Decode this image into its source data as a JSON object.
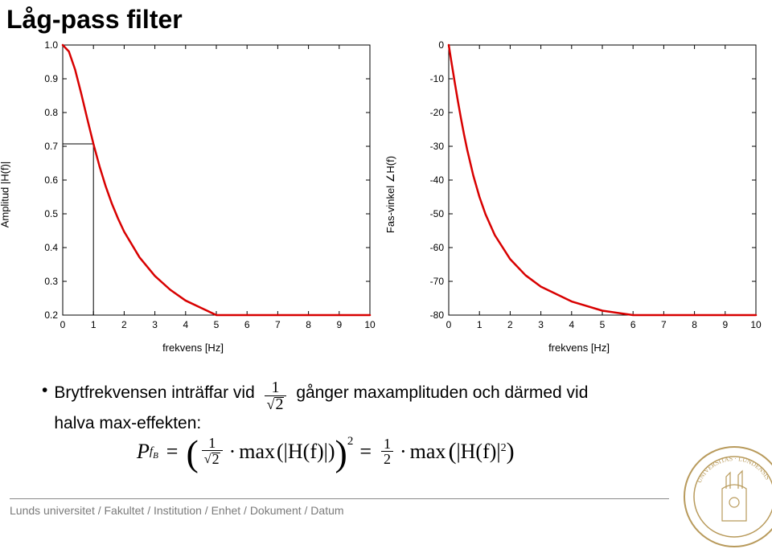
{
  "title": "Låg-pass filter",
  "chart_left": {
    "type": "line",
    "xlim": [
      0,
      10
    ],
    "ylim": [
      0.2,
      1
    ],
    "xtick_step": 1,
    "ytick_step": 0.1,
    "xlabel": "frekvens [Hz]",
    "ylabel": "Amplitud |H(f)|",
    "line_color": "#d80000",
    "line_width": 2.5,
    "box_color": "#000000",
    "background_color": "#ffffff",
    "label_fontsize": 13,
    "tick_fontsize": 12,
    "data": [
      [
        0,
        1.0
      ],
      [
        0.2,
        0.981
      ],
      [
        0.4,
        0.928
      ],
      [
        0.6,
        0.857
      ],
      [
        0.8,
        0.781
      ],
      [
        1.0,
        0.707
      ],
      [
        1.2,
        0.64
      ],
      [
        1.4,
        0.581
      ],
      [
        1.6,
        0.53
      ],
      [
        1.8,
        0.486
      ],
      [
        2.0,
        0.447
      ],
      [
        2.5,
        0.371
      ],
      [
        3.0,
        0.316
      ],
      [
        3.5,
        0.275
      ],
      [
        4.0,
        0.243
      ],
      [
        5.0,
        0.196
      ],
      [
        6.0,
        0.164
      ],
      [
        7.0,
        0.141
      ],
      [
        8.0,
        0.124
      ],
      [
        9.0,
        0.11
      ],
      [
        10.0,
        0.0995
      ]
    ],
    "marker_line": {
      "x": 1.0,
      "y": 0.707,
      "color": "#000000",
      "width": 1
    }
  },
  "chart_right": {
    "type": "line",
    "xlim": [
      0,
      10
    ],
    "ylim": [
      -80,
      0
    ],
    "xtick_step": 1,
    "ytick_step": 10,
    "xlabel": "frekvens [Hz]",
    "ylabel": "Fas-vinkel ∠H(f)",
    "line_color": "#d80000",
    "line_width": 2.5,
    "box_color": "#000000",
    "background_color": "#ffffff",
    "label_fontsize": 13,
    "tick_fontsize": 12,
    "data": [
      [
        0,
        0
      ],
      [
        0.1,
        -5.71
      ],
      [
        0.2,
        -11.31
      ],
      [
        0.3,
        -16.7
      ],
      [
        0.4,
        -21.8
      ],
      [
        0.5,
        -26.57
      ],
      [
        0.6,
        -30.96
      ],
      [
        0.8,
        -38.66
      ],
      [
        1.0,
        -45.0
      ],
      [
        1.2,
        -50.19
      ],
      [
        1.5,
        -56.31
      ],
      [
        2.0,
        -63.43
      ],
      [
        2.5,
        -68.2
      ],
      [
        3.0,
        -71.57
      ],
      [
        4.0,
        -75.96
      ],
      [
        5.0,
        -78.69
      ],
      [
        6.0,
        -80.54
      ],
      [
        7.0,
        -81.87
      ],
      [
        8.0,
        -82.87
      ],
      [
        9.0,
        -83.66
      ],
      [
        10.0,
        -84.29
      ]
    ]
  },
  "body": {
    "before_frac": "Brytfrekvensen inträffar vid",
    "frac_num": "1",
    "frac_den_sqrt_arg": "2",
    "after_frac": "gånger maxamplituden och därmed vid",
    "line2": "halva max-effekten:"
  },
  "equation": {
    "lhs_P": "P",
    "lhs_sub": "f",
    "lhs_subsub": "B",
    "eq": "=",
    "frac1_num": "1",
    "frac1_den_sqrt_arg": "2",
    "middot": "·",
    "maxword": "max",
    "arg1": "(|H(f)|)",
    "sq": "2",
    "frac2_num": "1",
    "frac2_den": "2",
    "arg2_open": "(",
    "arg2_body": "|H(f)|",
    "arg2_sup": "2",
    "arg2_close": ")"
  },
  "footer": "Lunds universitet / Fakultet / Institution / Enhet / Dokument / Datum",
  "seal": {
    "stroke": "#b89a5b",
    "fill": "#ffffff"
  }
}
